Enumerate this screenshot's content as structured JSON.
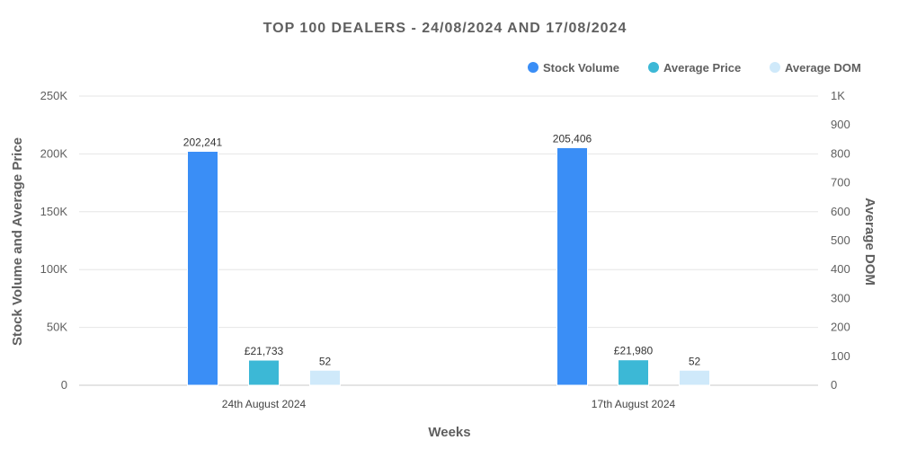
{
  "chart_data": {
    "type": "bar",
    "title": "TOP 100 DEALERS -  24/08/2024 AND 17/08/2024",
    "xlabel": "Weeks",
    "ylabel": "Stock Volume and Average Price",
    "y2label": "Average DOM",
    "categories": [
      "24th August 2024",
      "17th August 2024"
    ],
    "ylim": [
      0,
      250000
    ],
    "y_ticks": [
      "0",
      "50K",
      "100K",
      "150K",
      "200K",
      "250K"
    ],
    "y_tick_values": [
      0,
      50000,
      100000,
      150000,
      200000,
      250000
    ],
    "y2lim": [
      0,
      1000
    ],
    "y2_ticks": [
      "0",
      "100",
      "200",
      "300",
      "400",
      "500",
      "600",
      "700",
      "800",
      "900",
      "1K"
    ],
    "y2_tick_values": [
      0,
      100,
      200,
      300,
      400,
      500,
      600,
      700,
      800,
      900,
      1000
    ],
    "legend_position": "top-right",
    "grid": true,
    "series": [
      {
        "name": "Stock Volume",
        "axis": "left",
        "color": "#3a8ef6",
        "values": [
          202241,
          205406
        ],
        "labels": [
          "202,241",
          "205,406"
        ]
      },
      {
        "name": "Average Price",
        "axis": "left",
        "color": "#3cb8d6",
        "values": [
          21733,
          21980
        ],
        "labels": [
          "£21,733",
          "£21,980"
        ]
      },
      {
        "name": "Average DOM",
        "axis": "right",
        "color": "#cfe9fa",
        "values": [
          52,
          52
        ],
        "labels": [
          "52",
          "52"
        ]
      }
    ]
  }
}
